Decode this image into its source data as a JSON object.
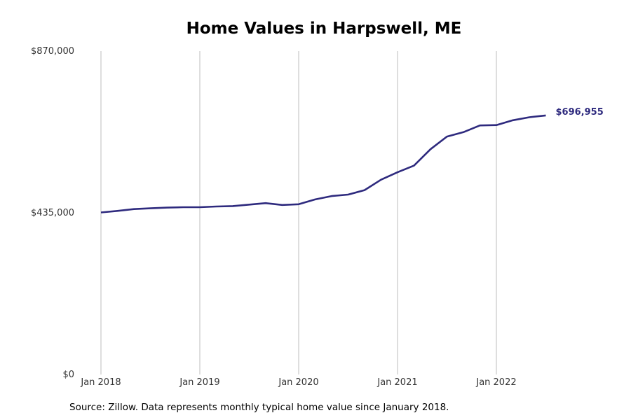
{
  "colors": {
    "line": "#2e2a7e",
    "grid": "#bdbdbd",
    "text": "#333333"
  },
  "source": "Source: Zillow. Data represents monthly typical home value since January 2018.",
  "chart_data": {
    "type": "line",
    "title": "Home Values in Harpswell, ME",
    "xlabel": "",
    "ylabel": "",
    "ylim": [
      0,
      870000
    ],
    "yticks": [
      {
        "value": 0,
        "label": "$0"
      },
      {
        "value": 435000,
        "label": "$435,000"
      },
      {
        "value": 870000,
        "label": "$870,000"
      }
    ],
    "xticks": [
      {
        "value": "2018-01",
        "label": "Jan 2018"
      },
      {
        "value": "2019-01",
        "label": "Jan 2019"
      },
      {
        "value": "2020-01",
        "label": "Jan 2020"
      },
      {
        "value": "2021-01",
        "label": "Jan 2021"
      },
      {
        "value": "2022-01",
        "label": "Jan 2022"
      }
    ],
    "grid": {
      "x": true,
      "y": false
    },
    "end_label": "$696,955",
    "series": [
      {
        "x": [
          "2018-01",
          "2018-03",
          "2018-05",
          "2018-07",
          "2018-09",
          "2018-11",
          "2019-01",
          "2019-03",
          "2019-05",
          "2019-07",
          "2019-09",
          "2019-11",
          "2020-01",
          "2020-03",
          "2020-05",
          "2020-07",
          "2020-09",
          "2020-11",
          "2021-01",
          "2021-03",
          "2021-05",
          "2021-07",
          "2021-09",
          "2021-11",
          "2022-01",
          "2022-03",
          "2022-05",
          "2022-07"
        ],
        "values": [
          436000,
          440000,
          445000,
          447000,
          449000,
          450000,
          450000,
          452000,
          453000,
          457000,
          461000,
          456000,
          458000,
          471000,
          480000,
          484000,
          496000,
          524000,
          544000,
          562000,
          606000,
          640000,
          652000,
          670000,
          671000,
          684000,
          692000,
          696955
        ]
      }
    ]
  }
}
